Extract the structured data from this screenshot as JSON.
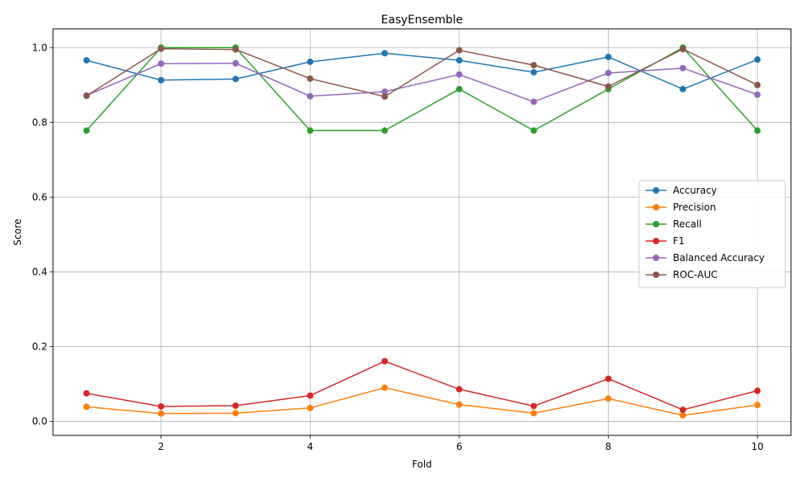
{
  "chart_data": {
    "type": "line",
    "title": "EasyEnsemble",
    "xlabel": "Fold",
    "ylabel": "Score",
    "x": [
      1,
      2,
      3,
      4,
      5,
      6,
      7,
      8,
      9,
      10
    ],
    "xlim": [
      0.55,
      10.45
    ],
    "ylim": [
      -0.0375,
      1.05
    ],
    "xticks": [
      2,
      4,
      6,
      8,
      10
    ],
    "yticks": [
      0.0,
      0.2,
      0.4,
      0.6,
      0.8,
      1.0
    ],
    "xtick_labels": [
      "2",
      "4",
      "6",
      "8",
      "10"
    ],
    "ytick_labels": [
      "0.0",
      "0.2",
      "0.4",
      "0.6",
      "0.8",
      "1.0"
    ],
    "grid": true,
    "legend_position": "center-right",
    "series": [
      {
        "name": "Accuracy",
        "color": "#1f77b4",
        "values": [
          0.966,
          0.913,
          0.916,
          0.962,
          0.985,
          0.966,
          0.934,
          0.975,
          0.889,
          0.968
        ]
      },
      {
        "name": "Precision",
        "color": "#ff7f0e",
        "values": [
          0.039,
          0.021,
          0.022,
          0.036,
          0.09,
          0.045,
          0.022,
          0.061,
          0.016,
          0.044
        ]
      },
      {
        "name": "Recall",
        "color": "#2ca02c",
        "values": [
          0.778,
          1.0,
          1.0,
          0.778,
          0.778,
          0.889,
          0.778,
          0.889,
          1.0,
          0.778
        ]
      },
      {
        "name": "F1",
        "color": "#d62728",
        "values": [
          0.075,
          0.04,
          0.042,
          0.069,
          0.161,
          0.086,
          0.041,
          0.114,
          0.031,
          0.082
        ]
      },
      {
        "name": "Balanced Accuracy",
        "color": "#9467bd",
        "values": [
          0.872,
          0.957,
          0.958,
          0.87,
          0.882,
          0.928,
          0.855,
          0.932,
          0.945,
          0.874
        ]
      },
      {
        "name": "ROC-AUC",
        "color": "#8c564b",
        "values": [
          0.871,
          0.997,
          0.995,
          0.917,
          0.869,
          0.993,
          0.953,
          0.896,
          0.996,
          0.9
        ]
      }
    ]
  }
}
